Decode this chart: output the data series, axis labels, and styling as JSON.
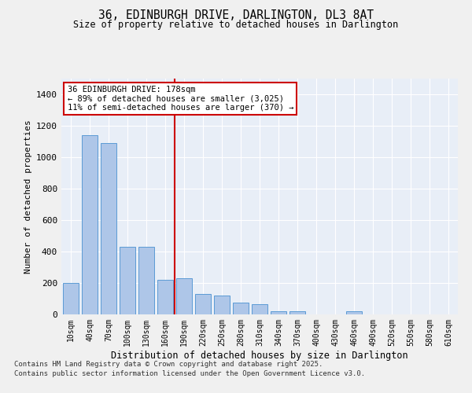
{
  "title1": "36, EDINBURGH DRIVE, DARLINGTON, DL3 8AT",
  "title2": "Size of property relative to detached houses in Darlington",
  "xlabel": "Distribution of detached houses by size in Darlington",
  "ylabel": "Number of detached properties",
  "categories": [
    "10sqm",
    "40sqm",
    "70sqm",
    "100sqm",
    "130sqm",
    "160sqm",
    "190sqm",
    "220sqm",
    "250sqm",
    "280sqm",
    "310sqm",
    "340sqm",
    "370sqm",
    "400sqm",
    "430sqm",
    "460sqm",
    "490sqm",
    "520sqm",
    "550sqm",
    "580sqm",
    "610sqm"
  ],
  "values": [
    200,
    1140,
    1090,
    430,
    430,
    220,
    230,
    130,
    120,
    75,
    65,
    20,
    20,
    0,
    0,
    20,
    0,
    0,
    0,
    0,
    0
  ],
  "bar_color": "#aec6e8",
  "bar_edge_color": "#5b9bd5",
  "vline_color": "#cc0000",
  "annotation_text": "36 EDINBURGH DRIVE: 178sqm\n← 89% of detached houses are smaller (3,025)\n11% of semi-detached houses are larger (370) →",
  "annotation_box_color": "#ffffff",
  "annotation_box_edge": "#cc0000",
  "ylim": [
    0,
    1500
  ],
  "yticks": [
    0,
    200,
    400,
    600,
    800,
    1000,
    1200,
    1400
  ],
  "background_color": "#e8eef7",
  "grid_color": "#ffffff",
  "fig_background": "#f0f0f0",
  "footer1": "Contains HM Land Registry data © Crown copyright and database right 2025.",
  "footer2": "Contains public sector information licensed under the Open Government Licence v3.0."
}
